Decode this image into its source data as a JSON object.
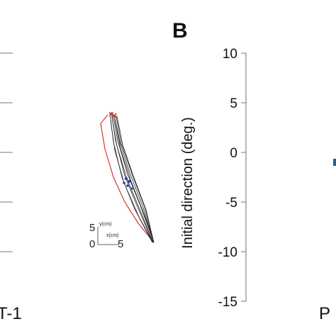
{
  "panel_b": {
    "letter": "B"
  },
  "left_panel": {
    "partial_axis_label": "T-1",
    "scale_bar": {
      "y_value": "5",
      "y_unit": "y(cm)",
      "origin": "0",
      "x_value": "5",
      "x_unit": "x(cm)"
    },
    "trajectory_colors": {
      "trials": "#222222",
      "highlight": "#e03030",
      "markers": "#2a3fb0"
    }
  },
  "right_panel": {
    "partial_axis_label": "P",
    "marker_color": "#2a5aa0"
  },
  "chart_data": {
    "type": "scatter",
    "title": "",
    "xlabel": "",
    "ylabel": "Initial direction (deg.)",
    "ylim": [
      -15,
      10
    ],
    "yticks": [
      10,
      5,
      0,
      -5,
      -10,
      -15
    ],
    "ytick_labels": [
      "10",
      "5",
      "0",
      "-5",
      "-10",
      "-15"
    ],
    "grid": false,
    "series": [
      {
        "values": [
          -1
        ]
      }
    ]
  }
}
